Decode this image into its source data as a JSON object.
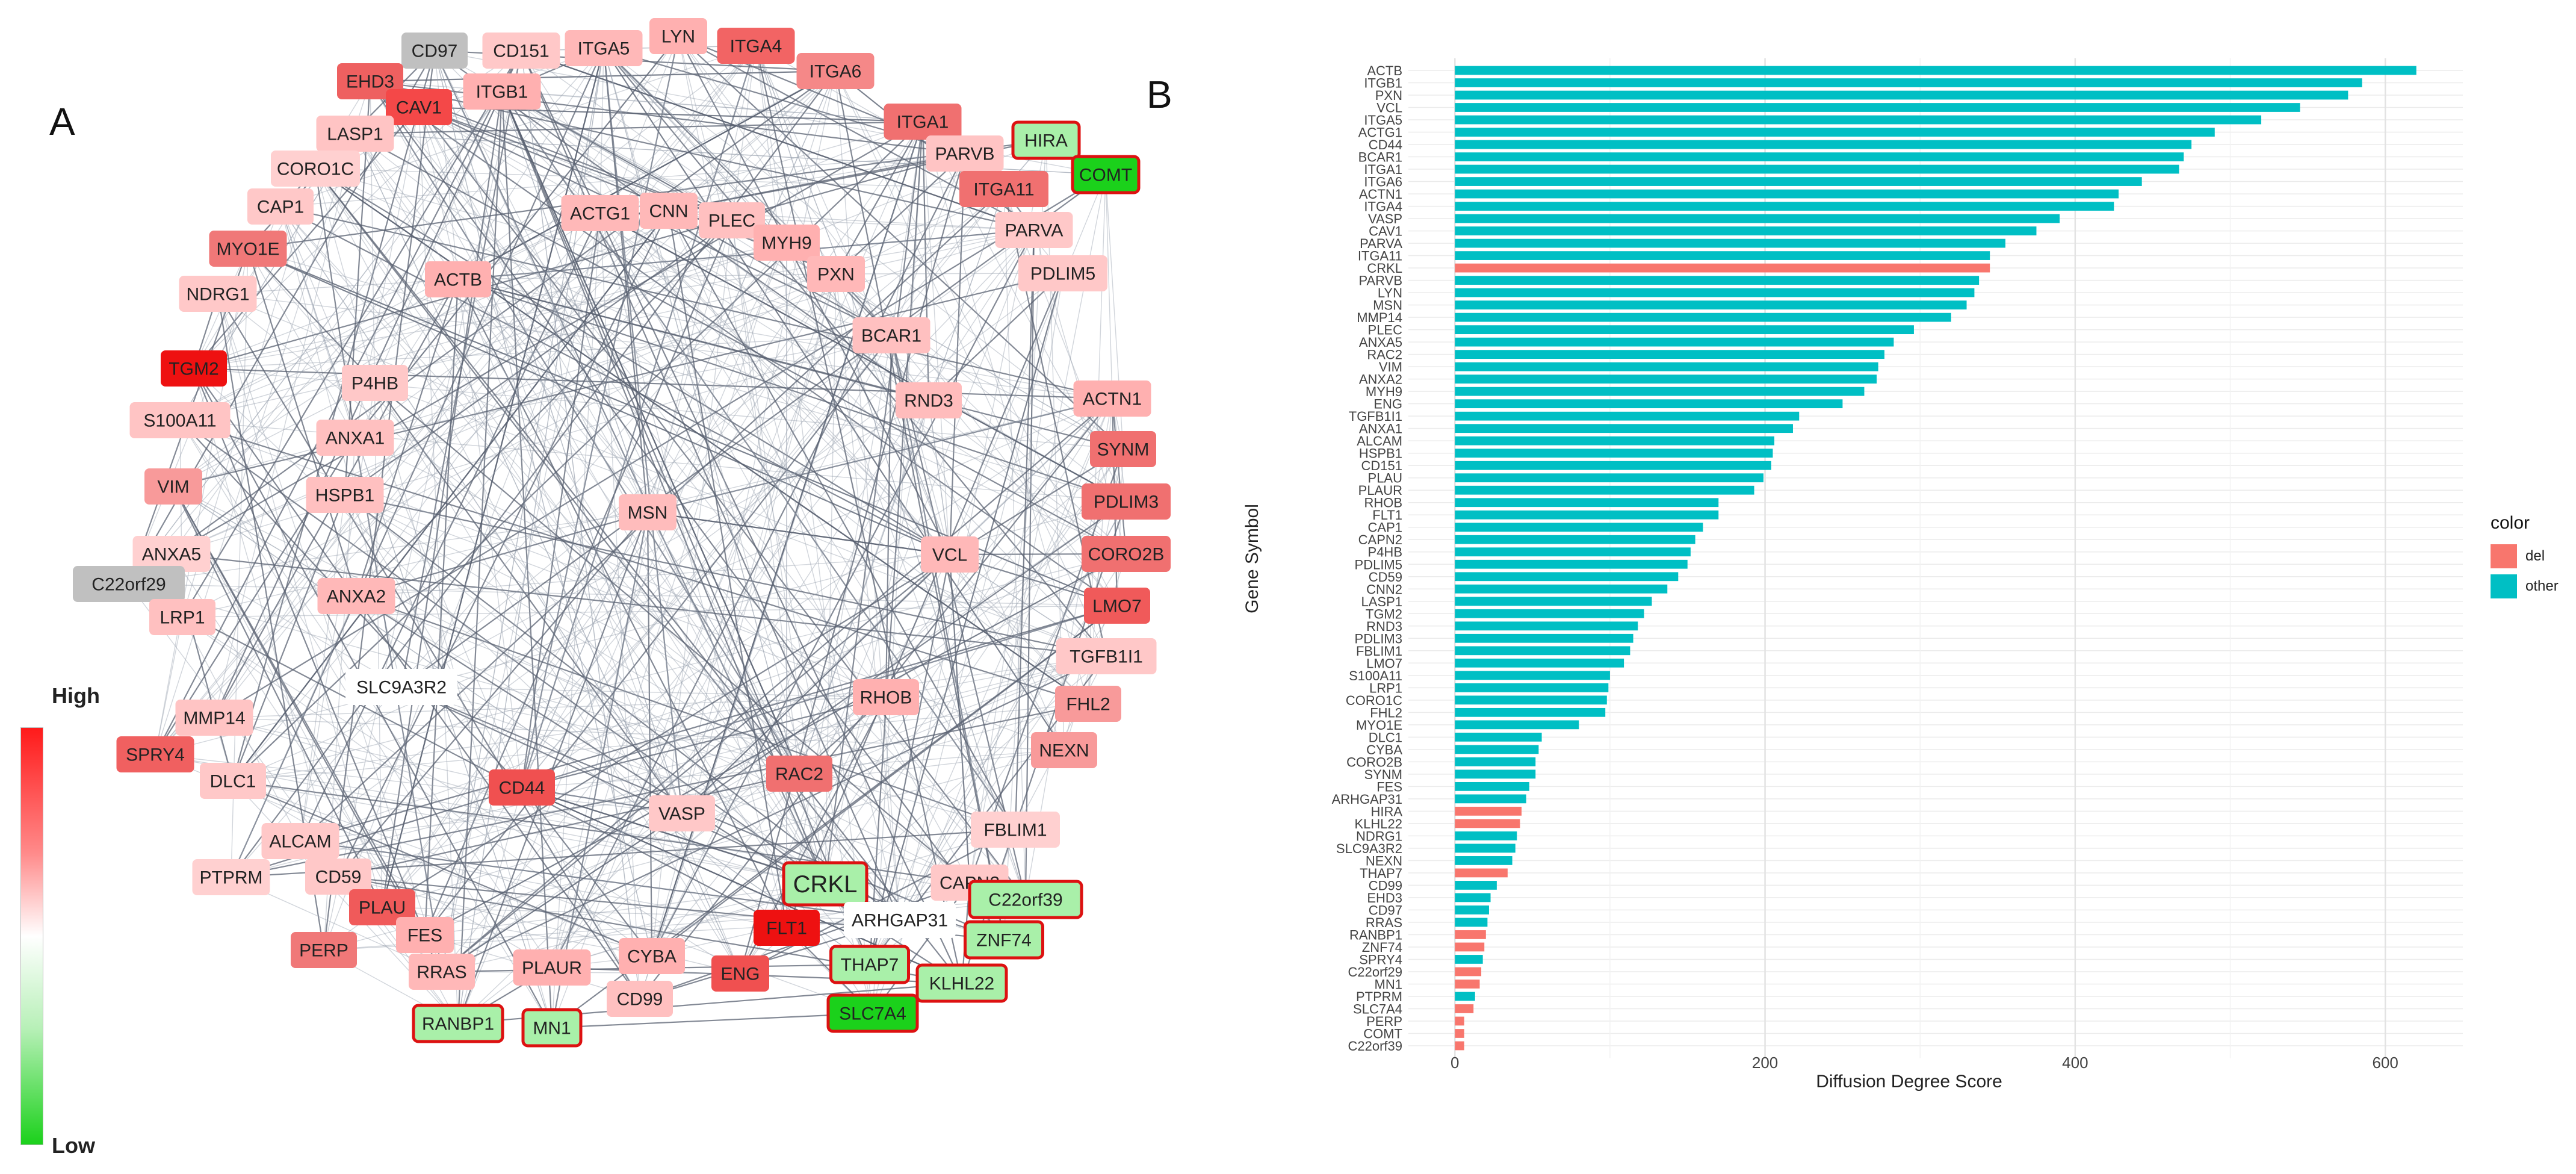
{
  "panels": {
    "a": "A",
    "b": "B"
  },
  "colorbar": {
    "high": "High",
    "low": "Low"
  },
  "colors": {
    "high": "#ff1a1a",
    "low": "#1bd11b",
    "neutral_node": "#c0c0c0",
    "edge": "#7a8290",
    "node_border_highlight": "#dd1111"
  },
  "chart_data": [
    {
      "type": "network",
      "nodes": [
        {
          "label": "CD97",
          "color": "#c0c0c0"
        },
        {
          "label": "CD151",
          "color": "#ffc8c8"
        },
        {
          "label": "ITGA5",
          "color": "#ffb8b8"
        },
        {
          "label": "LYN",
          "color": "#ffb0b0"
        },
        {
          "label": "ITGA4",
          "color": "#f26464"
        },
        {
          "label": "ITGA6",
          "color": "#f58888"
        },
        {
          "label": "EHD3",
          "color": "#ee6060"
        },
        {
          "label": "CAV1",
          "color": "#f44848"
        },
        {
          "label": "ITGB1",
          "color": "#ffb0b0"
        },
        {
          "label": "LASP1",
          "color": "#ffc4c4"
        },
        {
          "label": "ITGA1",
          "color": "#f07070"
        },
        {
          "label": "HIRA",
          "color": "#a9f0a9",
          "highlight": true
        },
        {
          "label": "PARVB",
          "color": "#ffc4c4"
        },
        {
          "label": "COMT",
          "color": "#1bd11b",
          "highlight": true
        },
        {
          "label": "CORO1C",
          "color": "#ffd0d0"
        },
        {
          "label": "ITGA11",
          "color": "#f07070"
        },
        {
          "label": "CAP1",
          "color": "#ffc8c8"
        },
        {
          "label": "ACTG1",
          "color": "#ffb8b8"
        },
        {
          "label": "CNN",
          "color": "#ffb8b8"
        },
        {
          "label": "PLEC",
          "color": "#ffc0c0"
        },
        {
          "label": "PARVA",
          "color": "#ffc8c8"
        },
        {
          "label": "MYO1E",
          "color": "#f07878"
        },
        {
          "label": "MYH9",
          "color": "#ffb0b0"
        },
        {
          "label": "NDRG1",
          "color": "#ffc8c8"
        },
        {
          "label": "ACTB",
          "color": "#ffb0b0"
        },
        {
          "label": "PXN",
          "color": "#ffb8b8"
        },
        {
          "label": "PDLIM5",
          "color": "#ffc8c8"
        },
        {
          "label": "BCAR1",
          "color": "#ffc0c0"
        },
        {
          "label": "TGM2",
          "color": "#ee1111"
        },
        {
          "label": "P4HB",
          "color": "#ffc8c8"
        },
        {
          "label": "RND3",
          "color": "#ffbcbc"
        },
        {
          "label": "ACTN1",
          "color": "#ffb0b0"
        },
        {
          "label": "S100A11",
          "color": "#ffc4c4"
        },
        {
          "label": "ANXA1",
          "color": "#ffc0c0"
        },
        {
          "label": "SYNM",
          "color": "#f07070"
        },
        {
          "label": "VIM",
          "color": "#f89a9a"
        },
        {
          "label": "HSPB1",
          "color": "#ffc0c0"
        },
        {
          "label": "PDLIM3",
          "color": "#f07070"
        },
        {
          "label": "MSN",
          "color": "#ffbcbc"
        },
        {
          "label": "VCL",
          "color": "#ffb8b8"
        },
        {
          "label": "ANXA5",
          "color": "#ffd0d0"
        },
        {
          "label": "CORO2B",
          "color": "#f07070"
        },
        {
          "label": "C22orf29",
          "color": "#c0c0c0"
        },
        {
          "label": "ANXA2",
          "color": "#ffb8b8"
        },
        {
          "label": "LRP1",
          "color": "#ffc0c0"
        },
        {
          "label": "LMO7",
          "color": "#f05a5a"
        },
        {
          "label": "SLC9A3R2",
          "color": "#ffffff"
        },
        {
          "label": "TGFB1I1",
          "color": "#ffc8c8"
        },
        {
          "label": "RHOB",
          "color": "#ffb0b0"
        },
        {
          "label": "MMP14",
          "color": "#ffc4c4"
        },
        {
          "label": "FHL2",
          "color": "#f89a9a"
        },
        {
          "label": "SPRY4",
          "color": "#f06060"
        },
        {
          "label": "DLC1",
          "color": "#ffc8c8"
        },
        {
          "label": "CD44",
          "color": "#f05050"
        },
        {
          "label": "RAC2",
          "color": "#f07070"
        },
        {
          "label": "NEXN",
          "color": "#f89a9a"
        },
        {
          "label": "VASP",
          "color": "#ffc8c8"
        },
        {
          "label": "ALCAM",
          "color": "#ffc8c8"
        },
        {
          "label": "FBLIM1",
          "color": "#ffd0d0"
        },
        {
          "label": "CRKL",
          "color": "#a9f0a9",
          "highlight": true
        },
        {
          "label": "PTPRM",
          "color": "#ffd0d0"
        },
        {
          "label": "CD59",
          "color": "#ffc8c8"
        },
        {
          "label": "CAPN2",
          "color": "#ffc8c8"
        },
        {
          "label": "ARHGAP31",
          "color": "#ffffff"
        },
        {
          "label": "C22orf39",
          "color": "#a9f0a9",
          "highlight": true
        },
        {
          "label": "PLAU",
          "color": "#f05a5a"
        },
        {
          "label": "FLT1",
          "color": "#ee1111"
        },
        {
          "label": "FES",
          "color": "#ffb0b0"
        },
        {
          "label": "ZNF74",
          "color": "#a9f0a9",
          "highlight": true
        },
        {
          "label": "PERP",
          "color": "#f07878"
        },
        {
          "label": "THAP7",
          "color": "#a9f0a9",
          "highlight": true
        },
        {
          "label": "CYBA",
          "color": "#ffb0b0"
        },
        {
          "label": "PLAUR",
          "color": "#ffb0b0"
        },
        {
          "label": "RRAS",
          "color": "#ffb8b8"
        },
        {
          "label": "ENG",
          "color": "#f05050"
        },
        {
          "label": "KLHL22",
          "color": "#a9f0a9",
          "highlight": true
        },
        {
          "label": "CD99",
          "color": "#ffc0c0"
        },
        {
          "label": "RANBP1",
          "color": "#a9f0a9",
          "highlight": true
        },
        {
          "label": "MN1",
          "color": "#a9f0a9",
          "highlight": true
        },
        {
          "label": "SLC7A4",
          "color": "#1bd11b",
          "highlight": true
        }
      ]
    },
    {
      "type": "bar",
      "orientation": "horizontal",
      "xlabel": "Diffusion Degree Score",
      "ylabel": "Gene Symbol",
      "xlim": [
        0,
        650
      ],
      "xticks": [
        0,
        200,
        400,
        600
      ],
      "legend": {
        "title": "color",
        "placement": "right",
        "entries": [
          {
            "name": "del",
            "color": "#f8766d"
          },
          {
            "name": "other",
            "color": "#00bfc4"
          }
        ]
      },
      "categories": [
        "ACTB",
        "ITGB1",
        "PXN",
        "VCL",
        "ITGA5",
        "ACTG1",
        "CD44",
        "BCAR1",
        "ITGA1",
        "ITGA6",
        "ACTN1",
        "ITGA4",
        "VASP",
        "CAV1",
        "PARVA",
        "ITGA11",
        "CRKL",
        "PARVB",
        "LYN",
        "MSN",
        "MMP14",
        "PLEC",
        "ANXA5",
        "RAC2",
        "VIM",
        "ANXA2",
        "MYH9",
        "ENG",
        "TGFB1I1",
        "ANXA1",
        "ALCAM",
        "HSPB1",
        "CD151",
        "PLAU",
        "PLAUR",
        "RHOB",
        "FLT1",
        "CAP1",
        "CAPN2",
        "P4HB",
        "PDLIM5",
        "CD59",
        "CNN2",
        "LASP1",
        "TGM2",
        "RND3",
        "PDLIM3",
        "FBLIM1",
        "LMO7",
        "S100A11",
        "LRP1",
        "CORO1C",
        "FHL2",
        "MYO1E",
        "DLC1",
        "CYBA",
        "CORO2B",
        "SYNM",
        "FES",
        "ARHGAP31",
        "HIRA",
        "KLHL22",
        "NDRG1",
        "SLC9A3R2",
        "NEXN",
        "THAP7",
        "CD99",
        "EHD3",
        "CD97",
        "RRAS",
        "RANBP1",
        "ZNF74",
        "SPRY4",
        "C22orf29",
        "MN1",
        "PTPRM",
        "SLC7A4",
        "PERP",
        "COMT",
        "C22orf39"
      ],
      "values": [
        620,
        585,
        576,
        545,
        520,
        490,
        475,
        470,
        467,
        443,
        428,
        425,
        390,
        375,
        355,
        345,
        345,
        338,
        335,
        330,
        320,
        296,
        283,
        277,
        273,
        272,
        264,
        250,
        222,
        218,
        206,
        205,
        204,
        199,
        193,
        170,
        170,
        160,
        155,
        152,
        150,
        144,
        137,
        127,
        122,
        118,
        115,
        113,
        109,
        100,
        99,
        98,
        97,
        80,
        56,
        54,
        52,
        52,
        48,
        46,
        43,
        42,
        40,
        39,
        37,
        34,
        27,
        23,
        22,
        21,
        20,
        19,
        18,
        17,
        16,
        13,
        12,
        6,
        6,
        6
      ],
      "groups": [
        "other",
        "other",
        "other",
        "other",
        "other",
        "other",
        "other",
        "other",
        "other",
        "other",
        "other",
        "other",
        "other",
        "other",
        "other",
        "other",
        "del",
        "other",
        "other",
        "other",
        "other",
        "other",
        "other",
        "other",
        "other",
        "other",
        "other",
        "other",
        "other",
        "other",
        "other",
        "other",
        "other",
        "other",
        "other",
        "other",
        "other",
        "other",
        "other",
        "other",
        "other",
        "other",
        "other",
        "other",
        "other",
        "other",
        "other",
        "other",
        "other",
        "other",
        "other",
        "other",
        "other",
        "other",
        "other",
        "other",
        "other",
        "other",
        "other",
        "other",
        "del",
        "del",
        "other",
        "other",
        "other",
        "del",
        "other",
        "other",
        "other",
        "other",
        "del",
        "del",
        "other",
        "del",
        "del",
        "other",
        "del",
        "del",
        "del",
        "del"
      ]
    }
  ]
}
